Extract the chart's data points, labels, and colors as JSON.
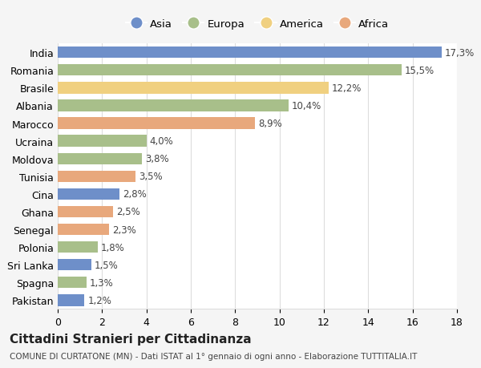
{
  "categories": [
    "India",
    "Romania",
    "Brasile",
    "Albania",
    "Marocco",
    "Ucraina",
    "Moldova",
    "Tunisia",
    "Cina",
    "Ghana",
    "Senegal",
    "Polonia",
    "Sri Lanka",
    "Spagna",
    "Pakistan"
  ],
  "values": [
    17.3,
    15.5,
    12.2,
    10.4,
    8.9,
    4.0,
    3.8,
    3.5,
    2.8,
    2.5,
    2.3,
    1.8,
    1.5,
    1.3,
    1.2
  ],
  "labels": [
    "17,3%",
    "15,5%",
    "12,2%",
    "10,4%",
    "8,9%",
    "4,0%",
    "3,8%",
    "3,5%",
    "2,8%",
    "2,5%",
    "2,3%",
    "1,8%",
    "1,5%",
    "1,3%",
    "1,2%"
  ],
  "colors": [
    "#6e8fc9",
    "#a8bf8a",
    "#f0d080",
    "#a8bf8a",
    "#e8a87c",
    "#a8bf8a",
    "#a8bf8a",
    "#e8a87c",
    "#6e8fc9",
    "#e8a87c",
    "#e8a87c",
    "#a8bf8a",
    "#6e8fc9",
    "#a8bf8a",
    "#6e8fc9"
  ],
  "continents": [
    "Asia",
    "Europa",
    "America",
    "Africa"
  ],
  "legend_colors": [
    "#6e8fc9",
    "#a8bf8a",
    "#f0d080",
    "#e8a87c"
  ],
  "xlim": [
    0,
    18
  ],
  "xticks": [
    0,
    2,
    4,
    6,
    8,
    10,
    12,
    14,
    16,
    18
  ],
  "title": "Cittadini Stranieri per Cittadinanza",
  "subtitle": "COMUNE DI CURTATONE (MN) - Dati ISTAT al 1° gennaio di ogni anno - Elaborazione TUTTITALIA.IT",
  "background_color": "#f5f5f5",
  "bar_background": "#ffffff",
  "grid_color": "#dddddd"
}
